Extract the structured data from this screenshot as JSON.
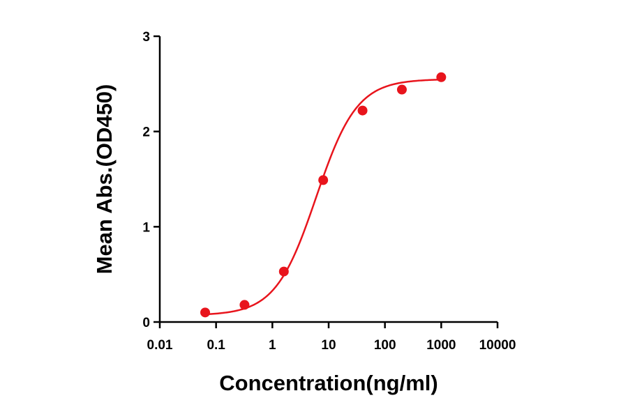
{
  "chart_data": {
    "type": "scatter",
    "title": "",
    "xlabel": "Concentration(ng/ml)",
    "ylabel": "Mean Abs.(OD450)",
    "x_scale": "log",
    "xlim": [
      0.01,
      10000
    ],
    "ylim": [
      0,
      3
    ],
    "x_ticks": [
      0.01,
      0.1,
      1,
      10,
      100,
      1000,
      10000
    ],
    "x_tick_labels": [
      "0.01",
      "0.1",
      "1",
      "10",
      "100",
      "1000",
      "10000"
    ],
    "y_ticks": [
      0,
      1,
      2,
      3
    ],
    "y_tick_labels": [
      "0",
      "1",
      "2",
      "3"
    ],
    "grid": false,
    "color": "#e8141c",
    "series": [
      {
        "points": [
          {
            "x": 0.064,
            "y": 0.1
          },
          {
            "x": 0.32,
            "y": 0.18
          },
          {
            "x": 1.6,
            "y": 0.53
          },
          {
            "x": 8,
            "y": 1.49
          },
          {
            "x": 40,
            "y": 2.22
          },
          {
            "x": 200,
            "y": 2.44
          },
          {
            "x": 1000,
            "y": 2.57
          }
        ],
        "fit": {
          "model": "4PL",
          "bottom": 0.07,
          "top": 2.55,
          "ec50": 6.0,
          "hill": 1.2
        }
      }
    ]
  }
}
